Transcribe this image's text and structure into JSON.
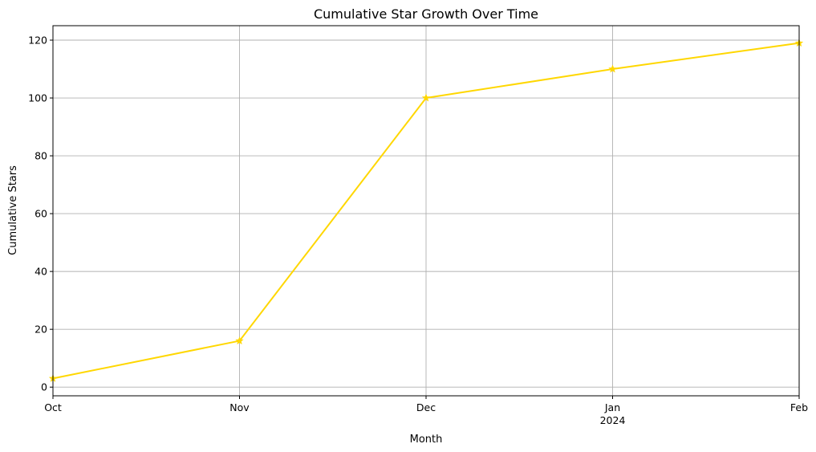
{
  "chart_data": {
    "type": "line",
    "title": "Cumulative Star Growth Over Time",
    "xlabel": "Month",
    "ylabel": "Cumulative Stars",
    "x": [
      "2023-10",
      "2023-11",
      "2023-12",
      "2024-01",
      "2024-02"
    ],
    "x_tick_labels": [
      "Oct",
      "Nov",
      "Dec",
      "Jan",
      "Feb"
    ],
    "x_tick_sublabels": [
      "",
      "",
      "",
      "2024",
      ""
    ],
    "series": [
      {
        "values": [
          3,
          16,
          100,
          110,
          119
        ],
        "color": "#FFD700",
        "marker": "star"
      }
    ],
    "ylim": [
      -3,
      125
    ],
    "yticks": [
      0,
      20,
      40,
      60,
      80,
      100,
      120
    ],
    "grid": true,
    "legend": "none"
  }
}
